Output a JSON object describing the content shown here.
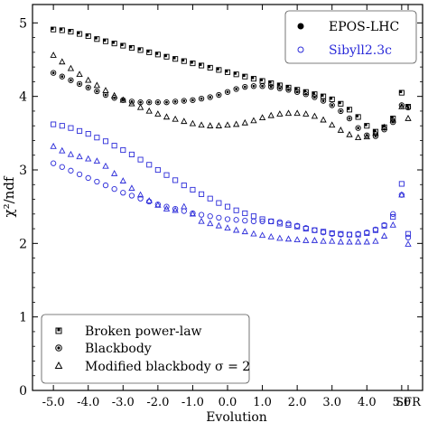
{
  "chart_data": {
    "type": "scatter",
    "xlabel": "Evolution",
    "ylabel": "χ²/ndf",
    "ylim": [
      0,
      5.25
    ],
    "xlim": [
      -5.6,
      5.6
    ],
    "x_ticks": [
      -5.0,
      -4.0,
      -3.0,
      -2.0,
      -1.0,
      0.0,
      1.0,
      2.0,
      3.0,
      4.0,
      5.0
    ],
    "x_tick_labels": [
      "-5.0",
      "-4.0",
      "-3.0",
      "-2.0",
      "-1.0",
      "0.0",
      "1.0",
      "2.0",
      "3.0",
      "4.0",
      "5.0"
    ],
    "y_ticks": [
      0,
      1,
      2,
      3,
      4,
      5
    ],
    "y_tick_labels": [
      "0",
      "1",
      "2",
      "3",
      "4",
      "5"
    ],
    "sfr_label": "SFR",
    "legend_models": {
      "placement": "top-right",
      "entries": [
        {
          "label": "EPOS-LHC",
          "color": "#000000",
          "marker": "dot"
        },
        {
          "label": "Sibyll2.3c",
          "color": "#2b2bd9",
          "marker": "circle"
        }
      ]
    },
    "legend_shapes": {
      "placement": "bottom-left",
      "entries": [
        {
          "label": "Broken power-law",
          "marker": "square"
        },
        {
          "label": "Blackbody",
          "marker": "circle"
        },
        {
          "label": "Modified blackbody σ = 2",
          "marker": "triangle"
        }
      ]
    },
    "x": [
      -5.0,
      -4.75,
      -4.5,
      -4.25,
      -4.0,
      -3.75,
      -3.5,
      -3.25,
      -3.0,
      -2.75,
      -2.5,
      -2.25,
      -2.0,
      -1.75,
      -1.5,
      -1.25,
      -1.0,
      -0.75,
      -0.5,
      -0.25,
      0.0,
      0.25,
      0.5,
      0.75,
      1.0,
      1.25,
      1.5,
      1.75,
      2.0,
      2.25,
      2.5,
      2.75,
      3.0,
      3.25,
      3.5,
      3.75,
      4.0,
      4.25,
      4.5,
      4.75,
      5.0
    ],
    "sfr_x": 6.2,
    "series": [
      {
        "name": "Broken power-law",
        "model": "EPOS-LHC",
        "marker": "square",
        "color": "#000000",
        "values": [
          4.91,
          4.9,
          4.88,
          4.85,
          4.82,
          4.78,
          4.75,
          4.72,
          4.69,
          4.66,
          4.63,
          4.6,
          4.57,
          4.54,
          4.51,
          4.48,
          4.45,
          4.42,
          4.39,
          4.36,
          4.33,
          4.3,
          4.27,
          4.24,
          4.21,
          4.18,
          4.15,
          4.12,
          4.09,
          4.06,
          4.03,
          4.0,
          3.96,
          3.9,
          3.82,
          3.72,
          3.6,
          3.52,
          3.58,
          3.7,
          4.05
        ],
        "sfr": 3.86
      },
      {
        "name": "Blackbody",
        "model": "EPOS-LHC",
        "marker": "circle",
        "color": "#000000",
        "values": [
          4.32,
          4.27,
          4.22,
          4.17,
          4.12,
          4.07,
          4.02,
          3.98,
          3.95,
          3.93,
          3.92,
          3.92,
          3.92,
          3.92,
          3.93,
          3.94,
          3.95,
          3.97,
          3.99,
          4.02,
          4.06,
          4.1,
          4.13,
          4.14,
          4.14,
          4.13,
          4.11,
          4.09,
          4.06,
          4.03,
          3.99,
          3.94,
          3.88,
          3.8,
          3.7,
          3.57,
          3.47,
          3.46,
          3.55,
          3.65,
          3.88
        ],
        "sfr": 3.85
      },
      {
        "name": "Modified blackbody σ = 2",
        "model": "EPOS-LHC",
        "marker": "triangle",
        "color": "#000000",
        "values": [
          4.56,
          4.47,
          4.38,
          4.3,
          4.22,
          4.15,
          4.08,
          4.01,
          3.95,
          3.9,
          3.85,
          3.8,
          3.76,
          3.72,
          3.69,
          3.66,
          3.63,
          3.61,
          3.6,
          3.6,
          3.61,
          3.62,
          3.64,
          3.67,
          3.71,
          3.74,
          3.76,
          3.77,
          3.77,
          3.76,
          3.73,
          3.68,
          3.61,
          3.54,
          3.48,
          3.44,
          3.45,
          3.5,
          3.58,
          3.68,
          3.86
        ],
        "sfr": 3.7
      },
      {
        "name": "Broken power-law",
        "model": "Sibyll2.3c",
        "marker": "square",
        "color": "#2b2bd9",
        "values": [
          3.62,
          3.6,
          3.57,
          3.53,
          3.49,
          3.44,
          3.39,
          3.33,
          3.27,
          3.21,
          3.14,
          3.07,
          3.0,
          2.93,
          2.86,
          2.79,
          2.73,
          2.67,
          2.61,
          2.55,
          2.5,
          2.45,
          2.41,
          2.37,
          2.33,
          2.3,
          2.27,
          2.25,
          2.23,
          2.2,
          2.18,
          2.16,
          2.14,
          2.13,
          2.12,
          2.12,
          2.14,
          2.18,
          2.24,
          2.36,
          2.81
        ],
        "sfr": 2.13
      },
      {
        "name": "Blackbody",
        "model": "Sibyll2.3c",
        "marker": "circle",
        "color": "#2b2bd9",
        "values": [
          3.09,
          3.04,
          2.99,
          2.94,
          2.89,
          2.84,
          2.79,
          2.74,
          2.69,
          2.65,
          2.61,
          2.57,
          2.53,
          2.5,
          2.47,
          2.44,
          2.41,
          2.39,
          2.37,
          2.35,
          2.33,
          2.32,
          2.31,
          2.3,
          2.3,
          2.3,
          2.29,
          2.27,
          2.24,
          2.21,
          2.18,
          2.15,
          2.13,
          2.12,
          2.12,
          2.13,
          2.15,
          2.19,
          2.25,
          2.4,
          2.66
        ],
        "sfr": 2.08
      },
      {
        "name": "Modified blackbody σ = 2",
        "model": "Sibyll2.3c",
        "marker": "triangle",
        "color": "#2b2bd9",
        "values": [
          3.32,
          3.26,
          3.21,
          3.18,
          3.15,
          3.12,
          3.05,
          2.95,
          2.85,
          2.75,
          2.66,
          2.58,
          2.52,
          2.47,
          2.45,
          2.5,
          2.4,
          2.3,
          2.27,
          2.24,
          2.21,
          2.18,
          2.16,
          2.13,
          2.11,
          2.09,
          2.07,
          2.06,
          2.05,
          2.04,
          2.04,
          2.03,
          2.03,
          2.02,
          2.02,
          2.02,
          2.02,
          2.03,
          2.1,
          2.25,
          2.66
        ],
        "sfr": 1.99
      }
    ]
  }
}
